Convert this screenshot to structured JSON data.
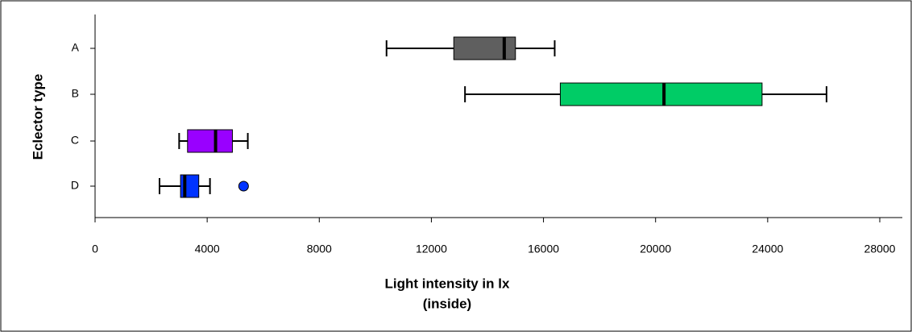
{
  "chart_data": {
    "type": "boxplot",
    "orientation": "horizontal",
    "x_label": [
      "Light intensity in lx",
      "(inside)"
    ],
    "y_label": "Eclector type",
    "categories": [
      "A",
      "B",
      "C",
      "D"
    ],
    "boxes": [
      {
        "min": 10400,
        "q1": 12800,
        "median": 14600,
        "q3": 15000,
        "max": 16400,
        "outliers": [],
        "color": "#5f5f5f"
      },
      {
        "min": 13200,
        "q1": 16600,
        "median": 20300,
        "q3": 23800,
        "max": 26100,
        "outliers": [],
        "color": "#00cc66"
      },
      {
        "min": 3000,
        "q1": 3300,
        "median": 4300,
        "q3": 4900,
        "max": 5450,
        "outliers": [],
        "color": "#9900ff"
      },
      {
        "min": 2300,
        "q1": 3050,
        "median": 3200,
        "q3": 3700,
        "max": 4100,
        "outliers": [
          5300
        ],
        "color": "#0033ff"
      }
    ],
    "xlim": [
      0,
      28000
    ],
    "xticks": [
      0,
      4000,
      8000,
      12000,
      16000,
      20000,
      24000,
      28000
    ],
    "grid": false
  }
}
